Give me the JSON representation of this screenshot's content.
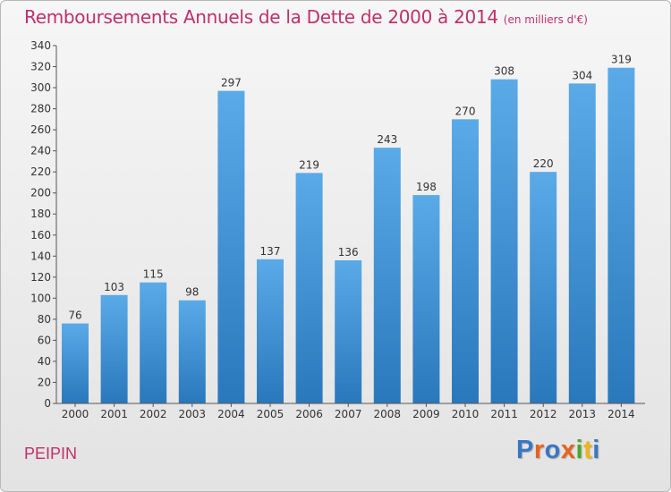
{
  "header": {
    "title": "Remboursements Annuels de la Dette de 2000 à 2014",
    "unit": "(en milliers d'€)"
  },
  "footer": {
    "commune": "PEIPIN",
    "logo": {
      "text": "Proxiti",
      "letter_colors": [
        "#3a76c4",
        "#e8631c",
        "#3a76c4",
        "#e8631c",
        "#4aa829",
        "#f2b417",
        "#3a76c4"
      ]
    }
  },
  "colors": {
    "accent": "#c0306a",
    "bar_light": "#5aaae8",
    "bar_dark": "#2a78bc"
  },
  "chart_data": {
    "type": "bar",
    "categories": [
      "2000",
      "2001",
      "2002",
      "2003",
      "2004",
      "2005",
      "2006",
      "2007",
      "2008",
      "2009",
      "2010",
      "2011",
      "2012",
      "2013",
      "2014"
    ],
    "values": [
      76,
      103,
      115,
      98,
      297,
      137,
      219,
      136,
      243,
      198,
      270,
      308,
      220,
      304,
      319
    ],
    "ylim": [
      0,
      340
    ],
    "yticks": [
      0,
      20,
      40,
      60,
      80,
      100,
      120,
      140,
      160,
      180,
      200,
      220,
      240,
      260,
      280,
      300,
      320,
      340
    ],
    "grid": false,
    "data_labels": true
  }
}
